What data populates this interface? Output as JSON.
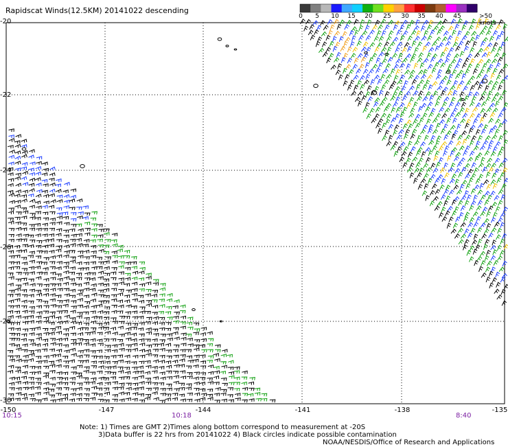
{
  "title": "Rapidscat Winds(12.5KM) 20141022 descending",
  "colorbar": {
    "colors": [
      "#3a3a3a",
      "#808080",
      "#b8b8b8",
      "#1a1aff",
      "#3fa8ff",
      "#10d0ff",
      "#10b010",
      "#70e020",
      "#ffd000",
      "#ffa040",
      "#ff3030",
      "#cc0000",
      "#7a3a10",
      "#b06030",
      "#ff00ff",
      "#9a30c0",
      "#30006a"
    ],
    "labels": [
      "0",
      "5",
      "10",
      "15",
      "20",
      "25",
      "30",
      "35",
      "40",
      "45",
      ">50 knots"
    ]
  },
  "y_axis": {
    "labels": [
      "-20",
      "-22",
      "-24",
      "-26",
      "-28",
      "-30"
    ],
    "values": [
      -20,
      -22,
      -24,
      -26,
      -28,
      -30
    ]
  },
  "x_axis": {
    "labels": [
      "-150",
      "-147",
      "-144",
      "-141",
      "-138",
      "-135"
    ],
    "values": [
      -150,
      -147,
      -144,
      -141,
      -138,
      -135
    ]
  },
  "times": [
    "10:15",
    "10:18",
    "8:40"
  ],
  "notes": {
    "line1": "Note: 1) Times are GMT 2)Times along bottom correspond to measurement at -20S",
    "line2": "3)Data buffer is 22 hrs from 20141022 4) Black circles indicate possible contamination",
    "line3": "NOAA/NESDIS/Office of Research and Applications"
  },
  "swaths": [
    {
      "name": "west-swath",
      "region": "lower-left",
      "dominant_color": "black",
      "secondary_colors": [
        "#0000ff",
        "#00a000",
        "#ffc000"
      ]
    },
    {
      "name": "east-swath",
      "region": "upper-right",
      "dominant_colors": [
        "#0000ff",
        "#00a000"
      ],
      "secondary_colors": [
        "black",
        "#ffc000"
      ]
    }
  ]
}
